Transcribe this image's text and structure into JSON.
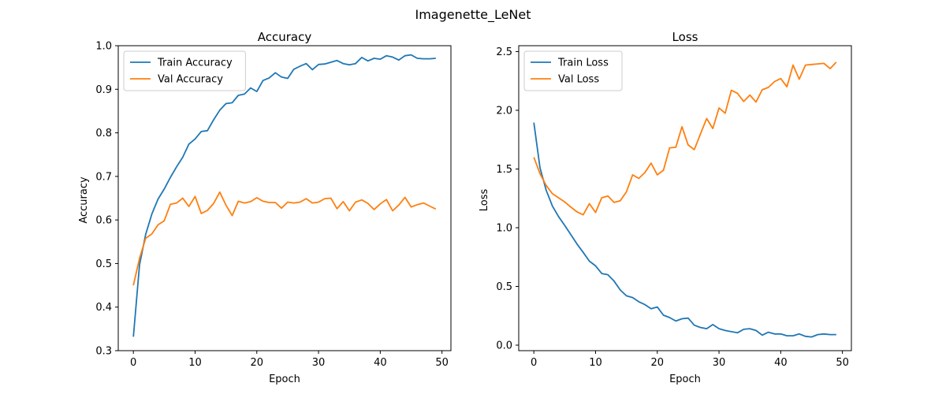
{
  "figure": {
    "title": "Imagenette_LeNet"
  },
  "chart_data": [
    {
      "type": "line",
      "title": "Accuracy",
      "xlabel": "Epoch",
      "ylabel": "Accuracy",
      "xlim": [
        -2.45,
        51.45
      ],
      "ylim": [
        0.3,
        1.0
      ],
      "xticks": [
        0,
        10,
        20,
        30,
        40,
        50
      ],
      "yticks": [
        0.3,
        0.4,
        0.5,
        0.6,
        0.7,
        0.8,
        0.9,
        1.0
      ],
      "grid": false,
      "legend_position": "upper-left",
      "x": [
        0,
        1,
        2,
        3,
        4,
        5,
        6,
        7,
        8,
        9,
        10,
        11,
        12,
        13,
        14,
        15,
        16,
        17,
        18,
        19,
        20,
        21,
        22,
        23,
        24,
        25,
        26,
        27,
        28,
        29,
        30,
        31,
        32,
        33,
        34,
        35,
        36,
        37,
        38,
        39,
        40,
        41,
        42,
        43,
        44,
        45,
        46,
        47,
        48,
        49
      ],
      "series": [
        {
          "name": "Train Accuracy",
          "color": "#1f77b4",
          "values": [
            0.332,
            0.497,
            0.567,
            0.614,
            0.648,
            0.671,
            0.698,
            0.722,
            0.744,
            0.774,
            0.786,
            0.803,
            0.805,
            0.83,
            0.852,
            0.867,
            0.869,
            0.886,
            0.889,
            0.903,
            0.895,
            0.92,
            0.926,
            0.938,
            0.928,
            0.925,
            0.946,
            0.953,
            0.959,
            0.945,
            0.957,
            0.958,
            0.962,
            0.966,
            0.959,
            0.956,
            0.959,
            0.973,
            0.965,
            0.971,
            0.969,
            0.977,
            0.974,
            0.967,
            0.977,
            0.979,
            0.971,
            0.97,
            0.97,
            0.971
          ]
        },
        {
          "name": "Val Accuracy",
          "color": "#ff7f0e",
          "values": [
            0.45,
            0.512,
            0.558,
            0.568,
            0.589,
            0.598,
            0.636,
            0.639,
            0.65,
            0.631,
            0.654,
            0.615,
            0.622,
            0.638,
            0.664,
            0.634,
            0.61,
            0.643,
            0.639,
            0.642,
            0.651,
            0.643,
            0.64,
            0.64,
            0.627,
            0.641,
            0.639,
            0.641,
            0.649,
            0.639,
            0.641,
            0.649,
            0.65,
            0.626,
            0.642,
            0.621,
            0.641,
            0.646,
            0.638,
            0.624,
            0.637,
            0.647,
            0.621,
            0.634,
            0.652,
            0.63,
            0.635,
            0.639,
            0.632,
            0.625
          ]
        }
      ]
    },
    {
      "type": "line",
      "title": "Loss",
      "xlabel": "Epoch",
      "ylabel": "Loss",
      "xlim": [
        -2.45,
        51.45
      ],
      "ylim": [
        -0.047,
        2.55
      ],
      "xticks": [
        0,
        10,
        20,
        30,
        40,
        50
      ],
      "yticks": [
        0.0,
        0.5,
        1.0,
        1.5,
        2.0,
        2.5
      ],
      "grid": false,
      "legend_position": "upper-left",
      "x": [
        0,
        1,
        2,
        3,
        4,
        5,
        6,
        7,
        8,
        9,
        10,
        11,
        12,
        13,
        14,
        15,
        16,
        17,
        18,
        19,
        20,
        21,
        22,
        23,
        24,
        25,
        26,
        27,
        28,
        29,
        30,
        31,
        32,
        33,
        34,
        35,
        36,
        37,
        38,
        39,
        40,
        41,
        42,
        43,
        44,
        45,
        46,
        47,
        48,
        49
      ],
      "series": [
        {
          "name": "Train Loss",
          "color": "#1f77b4",
          "values": [
            1.895,
            1.51,
            1.32,
            1.185,
            1.095,
            1.02,
            0.94,
            0.86,
            0.79,
            0.715,
            0.675,
            0.61,
            0.6,
            0.545,
            0.47,
            0.42,
            0.405,
            0.37,
            0.345,
            0.31,
            0.325,
            0.255,
            0.235,
            0.205,
            0.225,
            0.23,
            0.17,
            0.15,
            0.14,
            0.175,
            0.14,
            0.125,
            0.115,
            0.105,
            0.135,
            0.14,
            0.125,
            0.085,
            0.11,
            0.095,
            0.095,
            0.08,
            0.08,
            0.095,
            0.075,
            0.07,
            0.09,
            0.095,
            0.09,
            0.09
          ]
        },
        {
          "name": "Val Loss",
          "color": "#ff7f0e",
          "values": [
            1.6,
            1.46,
            1.36,
            1.29,
            1.255,
            1.22,
            1.175,
            1.135,
            1.11,
            1.205,
            1.13,
            1.255,
            1.27,
            1.215,
            1.23,
            1.305,
            1.45,
            1.42,
            1.47,
            1.55,
            1.45,
            1.49,
            1.68,
            1.685,
            1.86,
            1.705,
            1.665,
            1.8,
            1.93,
            1.845,
            2.02,
            1.975,
            2.17,
            2.145,
            2.075,
            2.13,
            2.07,
            2.175,
            2.195,
            2.245,
            2.27,
            2.2,
            2.385,
            2.265,
            2.385,
            2.39,
            2.395,
            2.4,
            2.355,
            2.41
          ]
        }
      ]
    }
  ]
}
